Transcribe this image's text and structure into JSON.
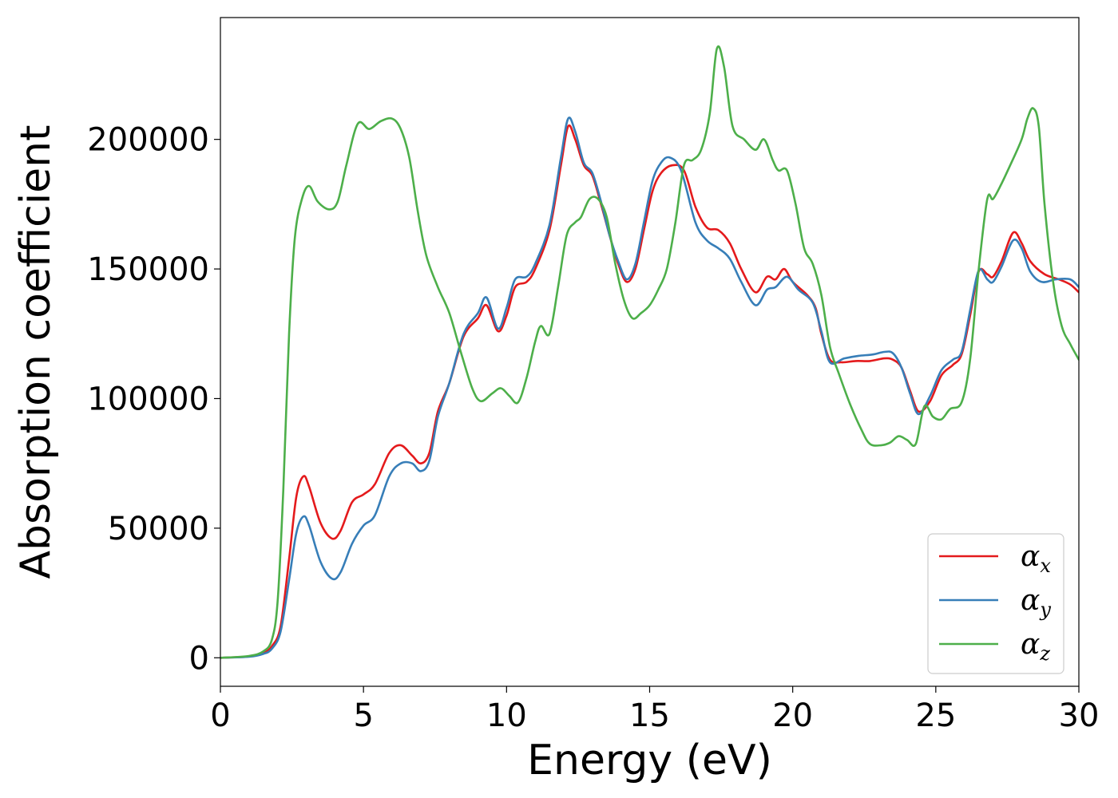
{
  "chart_data": {
    "type": "line",
    "title": "",
    "xlabel": "Energy (eV)",
    "ylabel": "Absorption coefficient",
    "xlim": [
      0,
      30
    ],
    "ylim": [
      -11000,
      247000
    ],
    "xticks": [
      0,
      5,
      10,
      15,
      20,
      25,
      30
    ],
    "yticks": [
      0,
      50000,
      100000,
      150000,
      200000
    ],
    "grid": false,
    "legend": {
      "position": "bottom-right"
    },
    "series": [
      {
        "name": "α",
        "subscript": "x",
        "color": "#e41a1c",
        "points": [
          [
            0,
            0
          ],
          [
            1,
            500
          ],
          [
            1.5,
            2000
          ],
          [
            1.8,
            4500
          ],
          [
            2.1,
            12000
          ],
          [
            2.4,
            38000
          ],
          [
            2.65,
            62000
          ],
          [
            2.9,
            70000
          ],
          [
            3.1,
            66000
          ],
          [
            3.5,
            52000
          ],
          [
            3.9,
            46000
          ],
          [
            4.2,
            49000
          ],
          [
            4.6,
            60000
          ],
          [
            5.0,
            63000
          ],
          [
            5.4,
            67000
          ],
          [
            5.9,
            79000
          ],
          [
            6.3,
            82000
          ],
          [
            6.7,
            78000
          ],
          [
            7.0,
            75000
          ],
          [
            7.3,
            79000
          ],
          [
            7.6,
            95000
          ],
          [
            8.0,
            106000
          ],
          [
            8.5,
            124000
          ],
          [
            9.0,
            131000
          ],
          [
            9.3,
            136000
          ],
          [
            9.7,
            126000
          ],
          [
            10.0,
            132000
          ],
          [
            10.3,
            143000
          ],
          [
            10.7,
            145000
          ],
          [
            11.0,
            150000
          ],
          [
            11.5,
            165000
          ],
          [
            11.9,
            190000
          ],
          [
            12.15,
            205000
          ],
          [
            12.4,
            200000
          ],
          [
            12.7,
            190000
          ],
          [
            13.0,
            186000
          ],
          [
            13.3,
            175000
          ],
          [
            13.6,
            163000
          ],
          [
            13.9,
            152000
          ],
          [
            14.2,
            145000
          ],
          [
            14.5,
            150000
          ],
          [
            14.8,
            165000
          ],
          [
            15.1,
            180000
          ],
          [
            15.4,
            187000
          ],
          [
            15.8,
            190000
          ],
          [
            16.2,
            188000
          ],
          [
            16.6,
            174000
          ],
          [
            17.0,
            166000
          ],
          [
            17.4,
            165000
          ],
          [
            17.8,
            160000
          ],
          [
            18.2,
            150000
          ],
          [
            18.7,
            141000
          ],
          [
            19.1,
            147000
          ],
          [
            19.4,
            146000
          ],
          [
            19.7,
            150000
          ],
          [
            20.0,
            145000
          ],
          [
            20.5,
            140000
          ],
          [
            20.8,
            135000
          ],
          [
            21.0,
            125000
          ],
          [
            21.3,
            115000
          ],
          [
            21.7,
            114000
          ],
          [
            22.2,
            114500
          ],
          [
            22.7,
            114500
          ],
          [
            23.2,
            115500
          ],
          [
            23.5,
            115000
          ],
          [
            23.8,
            112000
          ],
          [
            24.1,
            103000
          ],
          [
            24.4,
            95000
          ],
          [
            24.8,
            99000
          ],
          [
            25.2,
            109000
          ],
          [
            25.6,
            113000
          ],
          [
            25.9,
            117000
          ],
          [
            26.2,
            132000
          ],
          [
            26.5,
            149000
          ],
          [
            26.8,
            148000
          ],
          [
            27.0,
            147000
          ],
          [
            27.3,
            153000
          ],
          [
            27.7,
            164000
          ],
          [
            28.0,
            160000
          ],
          [
            28.3,
            153000
          ],
          [
            28.8,
            148000
          ],
          [
            29.3,
            146000
          ],
          [
            29.7,
            144000
          ],
          [
            30,
            141000
          ]
        ]
      },
      {
        "name": "α",
        "subscript": "y",
        "color": "#377eb8",
        "points": [
          [
            0,
            0
          ],
          [
            1,
            400
          ],
          [
            1.5,
            1500
          ],
          [
            1.8,
            3500
          ],
          [
            2.1,
            10000
          ],
          [
            2.4,
            30000
          ],
          [
            2.65,
            48000
          ],
          [
            2.9,
            54500
          ],
          [
            3.1,
            51000
          ],
          [
            3.5,
            37000
          ],
          [
            3.9,
            30500
          ],
          [
            4.2,
            33000
          ],
          [
            4.6,
            44000
          ],
          [
            5.0,
            51000
          ],
          [
            5.4,
            55000
          ],
          [
            5.9,
            70000
          ],
          [
            6.3,
            75000
          ],
          [
            6.7,
            75000
          ],
          [
            7.0,
            72000
          ],
          [
            7.3,
            76000
          ],
          [
            7.6,
            93000
          ],
          [
            8.0,
            106000
          ],
          [
            8.5,
            125000
          ],
          [
            9.0,
            133000
          ],
          [
            9.3,
            139000
          ],
          [
            9.7,
            127000
          ],
          [
            10.0,
            135000
          ],
          [
            10.3,
            146000
          ],
          [
            10.7,
            147000
          ],
          [
            11.0,
            152000
          ],
          [
            11.5,
            167000
          ],
          [
            11.9,
            193000
          ],
          [
            12.15,
            208000
          ],
          [
            12.4,
            203000
          ],
          [
            12.7,
            191000
          ],
          [
            13.0,
            187000
          ],
          [
            13.3,
            176000
          ],
          [
            13.6,
            163000
          ],
          [
            13.9,
            153000
          ],
          [
            14.2,
            146000
          ],
          [
            14.5,
            152000
          ],
          [
            14.8,
            168000
          ],
          [
            15.1,
            184000
          ],
          [
            15.4,
            191000
          ],
          [
            15.7,
            193000
          ],
          [
            16.1,
            188000
          ],
          [
            16.6,
            168000
          ],
          [
            17.0,
            161000
          ],
          [
            17.4,
            158000
          ],
          [
            17.8,
            154000
          ],
          [
            18.2,
            145000
          ],
          [
            18.7,
            136000
          ],
          [
            19.1,
            142000
          ],
          [
            19.4,
            143000
          ],
          [
            19.8,
            147000
          ],
          [
            20.2,
            142000
          ],
          [
            20.7,
            137000
          ],
          [
            21.0,
            126000
          ],
          [
            21.3,
            114000
          ],
          [
            21.8,
            115500
          ],
          [
            22.3,
            116500
          ],
          [
            22.8,
            117000
          ],
          [
            23.2,
            118000
          ],
          [
            23.5,
            117500
          ],
          [
            23.8,
            112000
          ],
          [
            24.1,
            102000
          ],
          [
            24.4,
            94000
          ],
          [
            24.8,
            101000
          ],
          [
            25.2,
            111000
          ],
          [
            25.6,
            115000
          ],
          [
            25.9,
            118000
          ],
          [
            26.2,
            134000
          ],
          [
            26.5,
            149500
          ],
          [
            26.8,
            146000
          ],
          [
            27.0,
            145000
          ],
          [
            27.3,
            151000
          ],
          [
            27.7,
            161000
          ],
          [
            28.0,
            158000
          ],
          [
            28.3,
            149000
          ],
          [
            28.7,
            145000
          ],
          [
            29.2,
            146000
          ],
          [
            29.7,
            146000
          ],
          [
            30,
            143000
          ]
        ]
      },
      {
        "name": "α",
        "subscript": "z",
        "color": "#4daf4a",
        "points": [
          [
            0,
            0
          ],
          [
            1,
            700
          ],
          [
            1.5,
            2500
          ],
          [
            1.8,
            7000
          ],
          [
            2.0,
            22000
          ],
          [
            2.2,
            65000
          ],
          [
            2.4,
            125000
          ],
          [
            2.6,
            162000
          ],
          [
            2.85,
            177000
          ],
          [
            3.1,
            182000
          ],
          [
            3.4,
            176000
          ],
          [
            3.8,
            173000
          ],
          [
            4.1,
            176000
          ],
          [
            4.4,
            190000
          ],
          [
            4.8,
            206000
          ],
          [
            5.2,
            204000
          ],
          [
            5.6,
            207000
          ],
          [
            6.0,
            208000
          ],
          [
            6.3,
            204000
          ],
          [
            6.6,
            193000
          ],
          [
            6.9,
            172000
          ],
          [
            7.2,
            155000
          ],
          [
            7.6,
            143000
          ],
          [
            8.0,
            133000
          ],
          [
            8.4,
            118000
          ],
          [
            8.8,
            104000
          ],
          [
            9.1,
            99000
          ],
          [
            9.5,
            102000
          ],
          [
            9.8,
            104000
          ],
          [
            10.1,
            101000
          ],
          [
            10.4,
            98500
          ],
          [
            10.7,
            108000
          ],
          [
            11.0,
            122000
          ],
          [
            11.2,
            128000
          ],
          [
            11.5,
            125000
          ],
          [
            11.8,
            143000
          ],
          [
            12.1,
            163000
          ],
          [
            12.4,
            168000
          ],
          [
            12.6,
            170000
          ],
          [
            12.9,
            177000
          ],
          [
            13.2,
            177000
          ],
          [
            13.5,
            170000
          ],
          [
            13.8,
            152000
          ],
          [
            14.1,
            138000
          ],
          [
            14.4,
            131000
          ],
          [
            14.7,
            133000
          ],
          [
            15.0,
            136000
          ],
          [
            15.3,
            142000
          ],
          [
            15.6,
            150000
          ],
          [
            15.9,
            168000
          ],
          [
            16.2,
            190000
          ],
          [
            16.5,
            192000
          ],
          [
            16.8,
            196000
          ],
          [
            17.1,
            210000
          ],
          [
            17.35,
            235000
          ],
          [
            17.6,
            228000
          ],
          [
            17.9,
            205000
          ],
          [
            18.3,
            200000
          ],
          [
            18.7,
            196000
          ],
          [
            19.0,
            200000
          ],
          [
            19.3,
            192000
          ],
          [
            19.5,
            188000
          ],
          [
            19.8,
            188000
          ],
          [
            20.1,
            175000
          ],
          [
            20.4,
            158000
          ],
          [
            20.7,
            152000
          ],
          [
            21.0,
            140000
          ],
          [
            21.3,
            120000
          ],
          [
            21.6,
            110000
          ],
          [
            22.0,
            98000
          ],
          [
            22.4,
            88000
          ],
          [
            22.7,
            82500
          ],
          [
            23.1,
            82000
          ],
          [
            23.4,
            83000
          ],
          [
            23.7,
            85500
          ],
          [
            24.0,
            84000
          ],
          [
            24.3,
            82500
          ],
          [
            24.6,
            97000
          ],
          [
            24.9,
            93000
          ],
          [
            25.2,
            92000
          ],
          [
            25.5,
            96000
          ],
          [
            25.9,
            98500
          ],
          [
            26.2,
            115000
          ],
          [
            26.5,
            150000
          ],
          [
            26.8,
            177000
          ],
          [
            27.0,
            177000
          ],
          [
            27.3,
            183000
          ],
          [
            27.6,
            190000
          ],
          [
            28.0,
            200000
          ],
          [
            28.2,
            208000
          ],
          [
            28.4,
            212000
          ],
          [
            28.6,
            205000
          ],
          [
            28.8,
            175000
          ],
          [
            29.1,
            145000
          ],
          [
            29.4,
            128000
          ],
          [
            29.7,
            121000
          ],
          [
            30,
            115000
          ]
        ]
      }
    ]
  }
}
